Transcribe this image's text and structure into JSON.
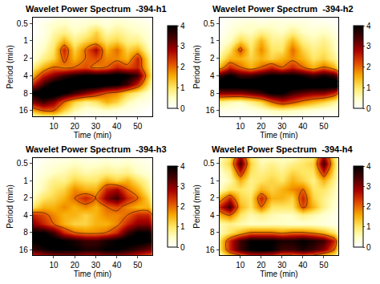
{
  "chart_data": [
    {
      "type": "heatmap",
      "title": "Wavelet Power Spectrum  -394-h1",
      "x_label": "Time (min)",
      "y_label": "Period (min)",
      "log": "y",
      "xlim": [
        0,
        57
      ],
      "xticks": [
        10,
        20,
        30,
        40,
        50
      ],
      "ylim": [
        20,
        0.4
      ],
      "yticks": [
        0.5,
        1,
        2,
        4,
        8,
        16
      ],
      "colorbar_range": [
        0,
        4
      ],
      "colorbar_ticks": [
        0,
        1,
        2,
        3,
        4
      ],
      "x": [
        0,
        5,
        10,
        15,
        20,
        25,
        30,
        35,
        40,
        45,
        50,
        55,
        57
      ],
      "y": [
        0.4,
        0.5,
        0.71,
        1,
        1.41,
        2,
        2.83,
        4,
        5.66,
        8,
        11.3,
        16,
        20
      ],
      "z": [
        [
          0,
          0,
          0.2,
          0.3,
          0.2,
          0.2,
          0.3,
          0.2,
          0.3,
          0.2,
          0.2,
          0.1,
          0
        ],
        [
          0,
          0.2,
          0.4,
          0.5,
          0.3,
          0.4,
          0.5,
          0.3,
          0.5,
          0.4,
          0.3,
          0.2,
          0
        ],
        [
          0,
          0.2,
          0.6,
          0.8,
          0.5,
          0.7,
          1.2,
          0.6,
          0.8,
          0.6,
          0.5,
          0.3,
          0.1
        ],
        [
          0.1,
          0.3,
          0.8,
          1.5,
          0.8,
          1.2,
          1.5,
          1,
          1.2,
          0.8,
          0.8,
          0.4,
          0.2
        ],
        [
          0.2,
          0.5,
          1,
          2.5,
          1.2,
          2,
          2.8,
          1.5,
          2,
          1.2,
          1.5,
          0.6,
          0.3
        ],
        [
          0.3,
          0.8,
          1.2,
          2.2,
          1.5,
          2,
          2.2,
          1.8,
          1.8,
          1.5,
          2.5,
          1,
          0.5
        ],
        [
          0.8,
          1.5,
          2,
          1.8,
          2,
          2.2,
          1.8,
          2,
          2.5,
          2.2,
          2.5,
          1.2,
          0.6
        ],
        [
          1.5,
          2.5,
          3,
          3.5,
          3.8,
          4,
          4,
          4,
          4.2,
          4,
          3.5,
          1.5,
          0.8
        ],
        [
          2.5,
          3.5,
          4.2,
          4.5,
          4.5,
          4.5,
          4.5,
          4.2,
          4,
          3.5,
          2.5,
          1,
          0.5
        ],
        [
          4,
          4.5,
          4.5,
          4,
          3.5,
          3,
          2.5,
          2,
          1.8,
          1.2,
          0.8,
          0.4,
          0.2
        ],
        [
          3,
          3.5,
          3,
          2,
          1.2,
          0.8,
          1,
          1.5,
          1.2,
          0.6,
          0.3,
          0.2,
          0
        ],
        [
          1.5,
          2,
          2,
          1.2,
          0.6,
          0.3,
          0.3,
          0.4,
          0.3,
          0.2,
          0.1,
          0,
          0
        ],
        [
          0.5,
          0.8,
          0.8,
          0.5,
          0.2,
          0.1,
          0.1,
          0.1,
          0.1,
          0,
          0,
          0,
          0
        ]
      ]
    },
    {
      "type": "heatmap",
      "title": "Wavelet Power Spectrum  -394-h2",
      "x_label": "Time (min)",
      "y_label": "Period (min)",
      "log": "y",
      "xlim": [
        0,
        57
      ],
      "xticks": [
        10,
        20,
        30,
        40,
        50
      ],
      "ylim": [
        20,
        0.4
      ],
      "yticks": [
        0.5,
        1,
        2,
        4,
        8,
        16
      ],
      "colorbar_range": [
        0,
        4
      ],
      "colorbar_ticks": [
        0,
        1,
        2,
        3,
        4
      ],
      "x": [
        0,
        5,
        10,
        15,
        20,
        25,
        30,
        35,
        40,
        45,
        50,
        55,
        57
      ],
      "y": [
        0.4,
        0.5,
        0.71,
        1,
        1.41,
        2,
        2.83,
        4,
        5.66,
        8,
        11.3,
        16,
        20
      ],
      "z": [
        [
          0,
          0.1,
          0.2,
          0.2,
          0.1,
          0.2,
          0.2,
          0.1,
          0.2,
          0.1,
          0.1,
          0,
          0
        ],
        [
          0,
          0.2,
          0.3,
          0.4,
          0.3,
          0.4,
          0.3,
          0.4,
          0.3,
          0.2,
          0.2,
          0.1,
          0
        ],
        [
          0.1,
          0.3,
          0.6,
          0.5,
          0.8,
          0.6,
          0.5,
          0.8,
          0.5,
          0.4,
          0.5,
          0.3,
          0.1
        ],
        [
          0.2,
          0.5,
          1.2,
          0.8,
          1.5,
          0.8,
          0.8,
          1.5,
          0.8,
          0.6,
          0.8,
          0.5,
          0.2
        ],
        [
          0.4,
          1,
          2.2,
          1,
          1.8,
          1,
          1,
          2,
          1.2,
          0.8,
          1,
          0.6,
          0.3
        ],
        [
          0.8,
          1.5,
          1.5,
          1.2,
          1.5,
          1.2,
          1.5,
          1.8,
          1.5,
          1,
          1.2,
          0.8,
          0.5
        ],
        [
          1.5,
          2.5,
          2,
          1.5,
          2,
          2.5,
          2,
          2.5,
          2,
          1.5,
          2,
          1.5,
          1
        ],
        [
          3.5,
          4,
          3.5,
          3.5,
          3.8,
          4,
          4,
          4,
          3.8,
          3.5,
          3.8,
          3.5,
          3
        ],
        [
          4.5,
          4.5,
          4.5,
          4.5,
          4.5,
          4.5,
          4.5,
          4.5,
          4.5,
          4.5,
          4.5,
          4.5,
          4.5
        ],
        [
          3,
          3,
          3,
          3.2,
          3.5,
          4,
          4,
          3.5,
          3.2,
          3,
          3,
          2.5,
          2
        ],
        [
          0.8,
          0.6,
          0.5,
          0.8,
          1.2,
          2,
          2.5,
          2.2,
          1.8,
          1.5,
          1.2,
          0.8,
          0.5
        ],
        [
          0.2,
          0.2,
          0.1,
          0.2,
          0.3,
          0.5,
          0.6,
          0.5,
          0.4,
          0.3,
          0.2,
          0.2,
          0.1
        ],
        [
          0,
          0,
          0,
          0,
          0.1,
          0.2,
          0.2,
          0.2,
          0.1,
          0.1,
          0,
          0,
          0
        ]
      ]
    },
    {
      "type": "heatmap",
      "title": "Wavelet Power Spectrum  -394-h3",
      "x_label": "Time (min)",
      "y_label": "Period (min)",
      "log": "y",
      "xlim": [
        0,
        57
      ],
      "xticks": [
        10,
        20,
        30,
        40,
        50
      ],
      "ylim": [
        20,
        0.4
      ],
      "yticks": [
        0.5,
        1,
        2,
        4,
        8,
        16
      ],
      "colorbar_range": [
        0,
        4
      ],
      "colorbar_ticks": [
        0,
        1,
        2,
        3,
        4
      ],
      "x": [
        0,
        5,
        10,
        15,
        20,
        25,
        30,
        35,
        40,
        45,
        50,
        55,
        57
      ],
      "y": [
        0.4,
        0.5,
        0.71,
        1,
        1.41,
        2,
        2.83,
        4,
        5.66,
        8,
        11.3,
        16,
        20
      ],
      "z": [
        [
          0,
          0.1,
          0.2,
          0.2,
          0.3,
          0.2,
          0.2,
          0.3,
          0.2,
          0.3,
          0.2,
          0.1,
          0
        ],
        [
          0,
          0.2,
          0.3,
          0.4,
          0.5,
          0.4,
          0.4,
          0.5,
          0.4,
          0.5,
          0.3,
          0.2,
          0.1
        ],
        [
          0.1,
          0.3,
          0.5,
          0.6,
          0.8,
          0.6,
          0.7,
          0.8,
          0.7,
          0.8,
          0.5,
          0.3,
          0.2
        ],
        [
          0.2,
          0.5,
          0.8,
          0.8,
          1.2,
          1,
          1,
          1.5,
          1.2,
          1.5,
          1,
          0.6,
          0.3
        ],
        [
          0.3,
          0.6,
          1,
          1.2,
          1.8,
          1.5,
          1.5,
          2.5,
          2.8,
          2,
          1.5,
          0.8,
          0.4
        ],
        [
          0.5,
          1,
          1.2,
          1.5,
          2,
          2.5,
          2,
          3,
          3.5,
          2.5,
          2,
          1.2,
          0.6
        ],
        [
          1,
          1.5,
          1.5,
          1.8,
          1.5,
          1.8,
          1.5,
          2,
          2.2,
          1.8,
          1.5,
          1.5,
          1
        ],
        [
          2.5,
          2.2,
          1.8,
          1.5,
          1.5,
          1.2,
          1.5,
          1.8,
          1.8,
          2,
          2.5,
          2.5,
          2
        ],
        [
          3,
          2.5,
          2,
          1.5,
          1.2,
          1.2,
          1.5,
          1.5,
          1.8,
          2.5,
          3,
          3,
          2.5
        ],
        [
          4,
          4,
          3.5,
          2.5,
          2,
          1.8,
          1.8,
          2,
          2.5,
          3.5,
          4,
          4,
          3.5
        ],
        [
          4,
          4.2,
          4.2,
          4,
          3.8,
          3.5,
          3.5,
          3.8,
          4,
          4.2,
          4.2,
          4,
          3.8
        ],
        [
          3.5,
          3.8,
          4,
          4,
          4,
          3.8,
          3.8,
          4,
          4,
          3.8,
          3.5,
          3.2,
          3
        ],
        [
          2.5,
          2.8,
          3,
          3,
          3,
          2.8,
          2.8,
          3,
          3,
          2.8,
          2.5,
          2.2,
          2
        ]
      ]
    },
    {
      "type": "heatmap",
      "title": "Wavelet Power Spectrum  -394-h4",
      "x_label": "Time (min)",
      "y_label": "Period (min)",
      "log": "y",
      "xlim": [
        0,
        57
      ],
      "xticks": [
        10,
        20,
        30,
        40,
        50
      ],
      "ylim": [
        20,
        0.4
      ],
      "yticks": [
        0.5,
        1,
        2,
        4,
        8,
        16
      ],
      "colorbar_range": [
        0,
        4
      ],
      "colorbar_ticks": [
        0,
        1,
        2,
        3,
        4
      ],
      "x": [
        0,
        5,
        10,
        15,
        20,
        25,
        30,
        35,
        40,
        45,
        50,
        55,
        57
      ],
      "y": [
        0.4,
        0.5,
        0.71,
        1,
        1.41,
        2,
        2.83,
        4,
        5.66,
        8,
        11.3,
        16,
        20
      ],
      "z": [
        [
          0.5,
          1,
          3,
          1,
          0.5,
          0.5,
          0.5,
          0.5,
          0.8,
          1,
          3,
          1,
          0.5
        ],
        [
          0.6,
          1.2,
          3.5,
          1.2,
          0.6,
          0.8,
          0.6,
          0.8,
          1,
          1.2,
          3.5,
          1.2,
          0.6
        ],
        [
          0.4,
          0.8,
          2.5,
          1,
          0.8,
          1,
          0.8,
          1.2,
          1,
          1,
          2.5,
          1,
          0.5
        ],
        [
          0.3,
          0.6,
          1.5,
          0.8,
          1,
          1.2,
          1,
          1.5,
          1.2,
          0.8,
          1.5,
          0.8,
          0.4
        ],
        [
          0.5,
          1,
          1,
          0.8,
          1.5,
          1.2,
          1.5,
          1.8,
          2,
          1,
          1,
          0.6,
          0.3
        ],
        [
          1.5,
          2.5,
          1.2,
          1,
          2.5,
          1.5,
          1.5,
          1.2,
          2.5,
          1.2,
          0.8,
          0.5,
          0.3
        ],
        [
          2.5,
          3.5,
          1.5,
          1,
          2,
          1,
          1,
          1,
          2.2,
          1.5,
          0.8,
          0.4,
          0.2
        ],
        [
          1.5,
          2,
          1,
          0.6,
          0.8,
          0.6,
          0.5,
          0.5,
          0.8,
          0.6,
          0.4,
          0.2,
          0.1
        ],
        [
          0.6,
          0.8,
          0.6,
          0.5,
          0.5,
          0.5,
          0.5,
          0.4,
          0.4,
          0.4,
          0.3,
          0.2,
          0.1
        ],
        [
          0.5,
          1,
          1.5,
          2,
          2,
          2,
          1.8,
          2,
          2,
          1.8,
          1.5,
          1,
          0.5
        ],
        [
          1,
          2.5,
          3.5,
          4,
          4,
          4,
          3.8,
          3.8,
          4,
          3.8,
          3.5,
          2.5,
          1.5
        ],
        [
          1,
          2.5,
          3.5,
          4,
          4.2,
          4,
          3.5,
          3.5,
          3.8,
          3.5,
          3,
          2,
          1
        ],
        [
          0.5,
          1.5,
          2,
          2.5,
          2.5,
          2.5,
          2,
          2,
          2.2,
          2,
          1.5,
          1,
          0.5
        ]
      ]
    }
  ]
}
